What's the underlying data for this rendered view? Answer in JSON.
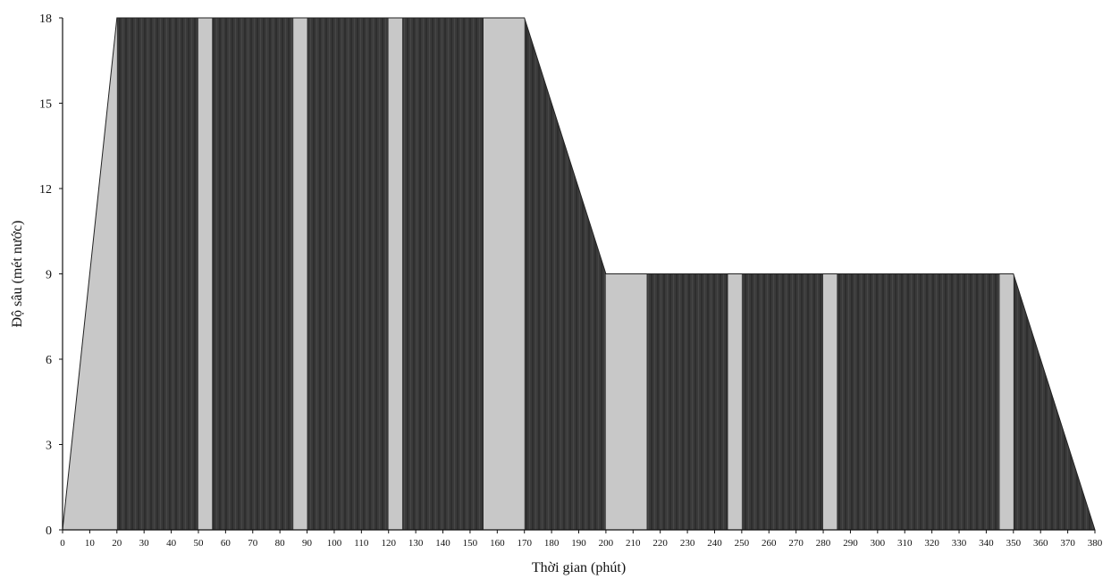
{
  "chart_data": {
    "type": "area",
    "title": "",
    "xlabel": "Thời gian (phút)",
    "ylabel": "Độ sâu (mét nước)",
    "xlim": [
      0,
      380
    ],
    "ylim": [
      0,
      18
    ],
    "x_ticks": [
      0,
      10,
      20,
      30,
      40,
      50,
      60,
      70,
      80,
      90,
      100,
      110,
      120,
      130,
      140,
      150,
      160,
      170,
      180,
      190,
      200,
      210,
      220,
      230,
      240,
      250,
      260,
      270,
      280,
      290,
      300,
      310,
      320,
      330,
      340,
      350,
      360,
      370,
      380
    ],
    "y_ticks": [
      0,
      3,
      6,
      9,
      12,
      15,
      18
    ],
    "grid": false,
    "legend": "none",
    "profile": [
      {
        "x": 0,
        "y": 0
      },
      {
        "x": 20,
        "y": 18
      },
      {
        "x": 170,
        "y": 18
      },
      {
        "x": 200,
        "y": 9
      },
      {
        "x": 350,
        "y": 9
      },
      {
        "x": 380,
        "y": 0
      }
    ],
    "segments": [
      {
        "kind": "light",
        "x0": 0,
        "x1": 20
      },
      {
        "kind": "dark",
        "x0": 20,
        "x1": 50
      },
      {
        "kind": "light",
        "x0": 50,
        "x1": 55
      },
      {
        "kind": "dark",
        "x0": 55,
        "x1": 85
      },
      {
        "kind": "light",
        "x0": 85,
        "x1": 90
      },
      {
        "kind": "dark",
        "x0": 90,
        "x1": 120
      },
      {
        "kind": "light",
        "x0": 120,
        "x1": 125
      },
      {
        "kind": "dark",
        "x0": 125,
        "x1": 155
      },
      {
        "kind": "light",
        "x0": 155,
        "x1": 170
      },
      {
        "kind": "dark",
        "x0": 170,
        "x1": 200
      },
      {
        "kind": "light",
        "x0": 200,
        "x1": 215
      },
      {
        "kind": "dark",
        "x0": 215,
        "x1": 245
      },
      {
        "kind": "light",
        "x0": 245,
        "x1": 250
      },
      {
        "kind": "dark",
        "x0": 250,
        "x1": 280
      },
      {
        "kind": "light",
        "x0": 280,
        "x1": 285
      },
      {
        "kind": "dark",
        "x0": 285,
        "x1": 345
      },
      {
        "kind": "light",
        "x0": 345,
        "x1": 350
      },
      {
        "kind": "dark",
        "x0": 350,
        "x1": 380
      }
    ],
    "colors": {
      "dark": "#3a3a3a",
      "light": "#c8c8c8",
      "axis": "#111111"
    }
  }
}
